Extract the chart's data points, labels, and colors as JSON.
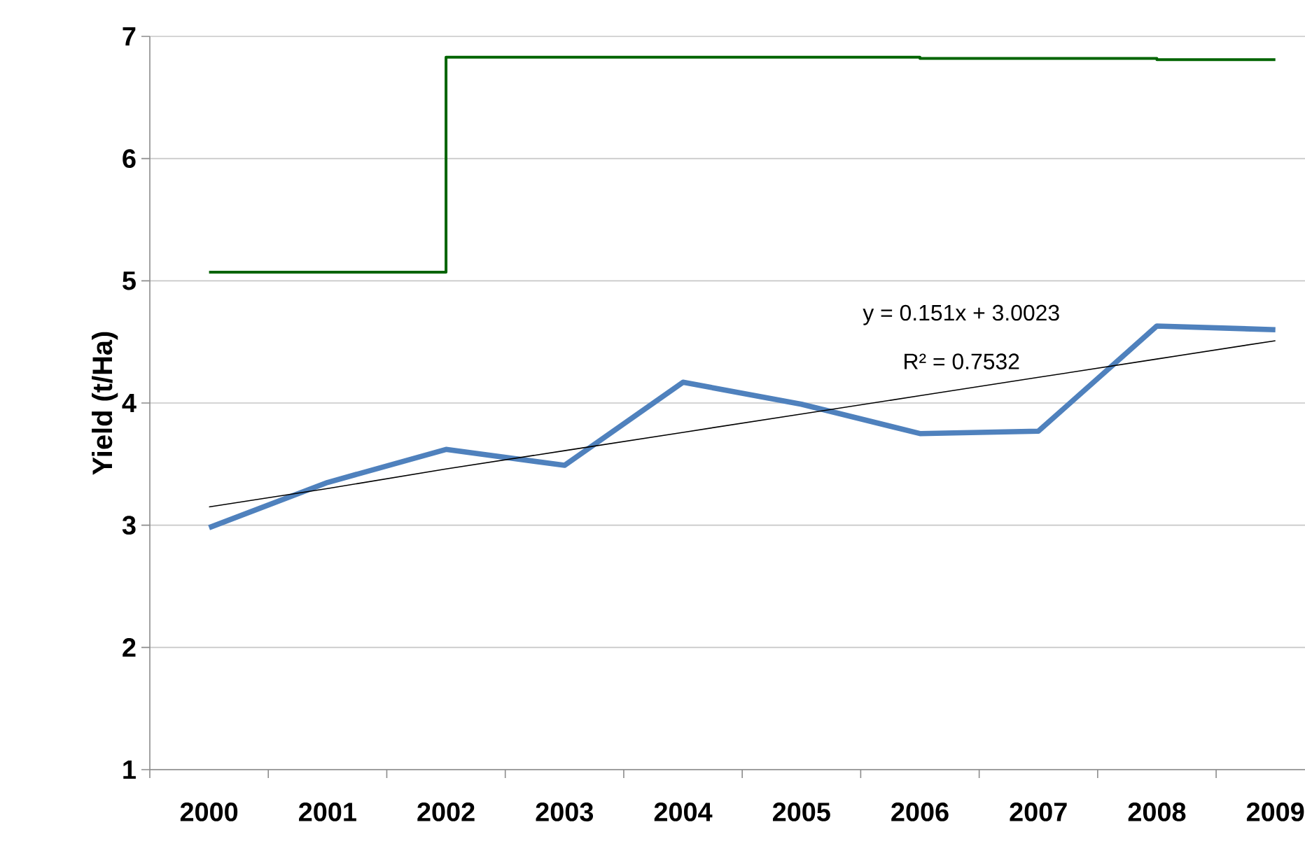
{
  "chart_data": {
    "type": "line",
    "ylabel": "Yield (t/Ha)",
    "categories": [
      "2000",
      "2001",
      "2002",
      "2003",
      "2004",
      "2005",
      "2006",
      "2007",
      "2008",
      "2009"
    ],
    "series": [
      {
        "type": "step",
        "color": "#006400",
        "values": [
          5.07,
          5.07,
          6.83,
          6.83,
          6.83,
          6.83,
          6.82,
          6.82,
          6.81,
          6.81
        ]
      },
      {
        "color": "#4f81bd",
        "values": [
          2.98,
          3.35,
          3.62,
          3.49,
          4.17,
          3.99,
          3.75,
          3.77,
          4.63,
          4.6
        ]
      },
      {
        "color": "#000000",
        "values": [
          3.15,
          3.3,
          3.46,
          3.61,
          3.76,
          3.91,
          4.06,
          4.21,
          4.36,
          4.51
        ]
      }
    ],
    "annotations": [
      "y = 0.151x + 3.0023",
      "R² = 0.7532"
    ],
    "ylim": [
      1,
      7
    ],
    "yticks": [
      1,
      2,
      3,
      4,
      5,
      6,
      7
    ],
    "grid": "y"
  }
}
